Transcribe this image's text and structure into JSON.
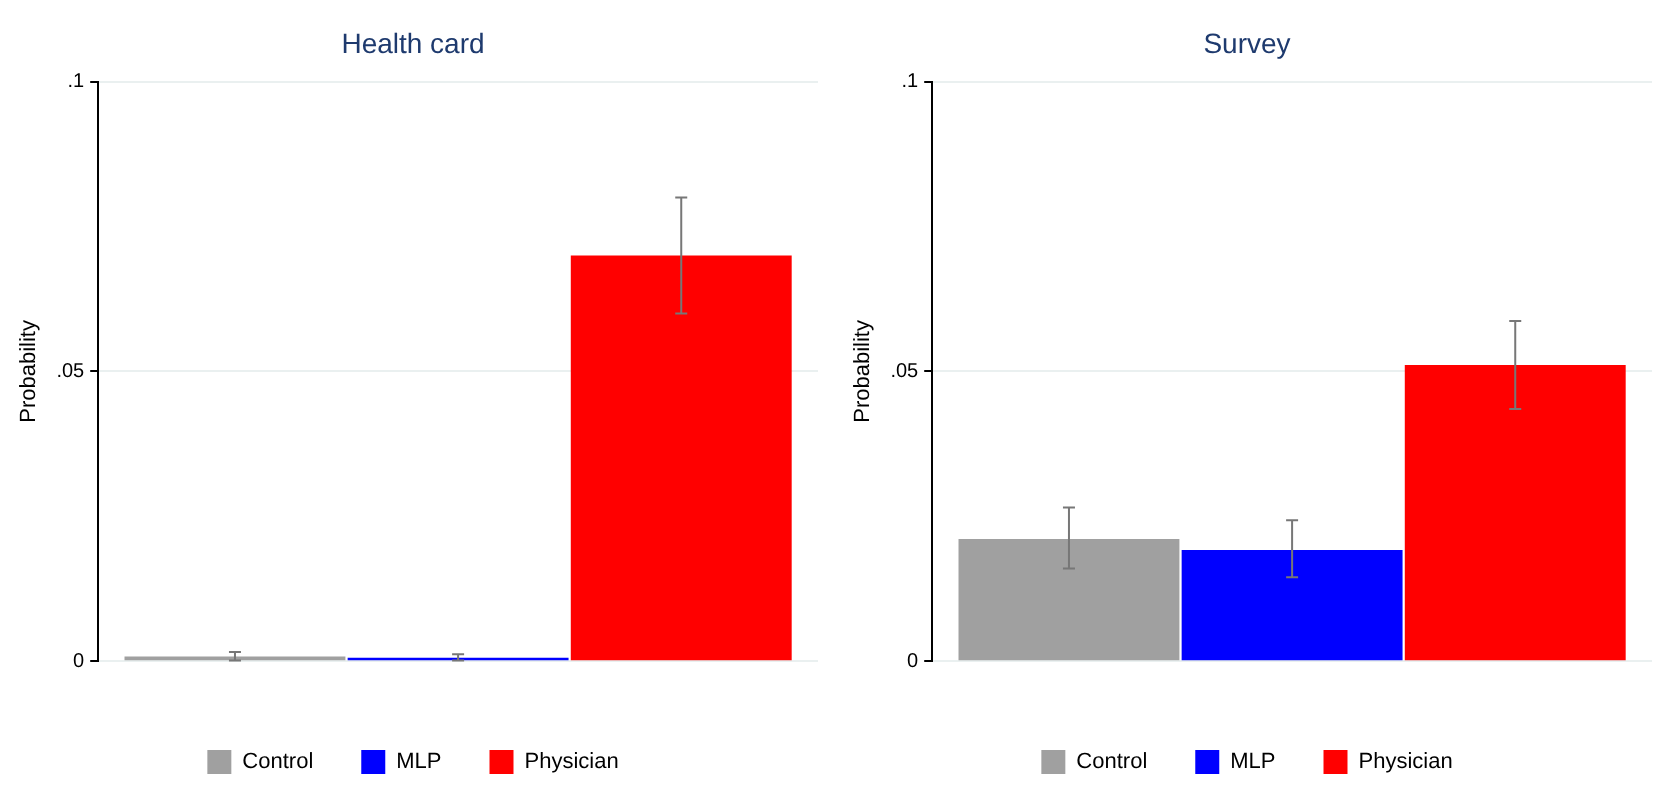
{
  "chart_data": [
    {
      "type": "bar",
      "title": "Health card",
      "ylabel": "Probability",
      "categories": [
        null
      ],
      "ylim": [
        0,
        0.1
      ],
      "yticks": [
        {
          "value": 0,
          "label": "0"
        },
        {
          "value": 0.05,
          "label": ".05"
        },
        {
          "value": 0.1,
          "label": ".1"
        }
      ],
      "grid": "y",
      "legend": "bottom",
      "series": [
        {
          "name": "Control",
          "color": "#a0a0a0",
          "values": [
            0.0008
          ],
          "errors": [
            [
              0.0001,
              0.0016
            ]
          ]
        },
        {
          "name": "MLP",
          "color": "#0000ff",
          "values": [
            0.0006
          ],
          "errors": [
            [
              0.0001,
              0.0012
            ]
          ]
        },
        {
          "name": "Physician",
          "color": "#ff0000",
          "values": [
            0.07
          ],
          "errors": [
            [
              0.06,
              0.08
            ]
          ]
        }
      ]
    },
    {
      "type": "bar",
      "title": "Survey",
      "ylabel": "Probability",
      "categories": [
        null
      ],
      "ylim": [
        0,
        0.1
      ],
      "yticks": [
        {
          "value": 0,
          "label": "0"
        },
        {
          "value": 0.05,
          "label": ".05"
        },
        {
          "value": 0.1,
          "label": ".1"
        }
      ],
      "grid": "y",
      "legend": "bottom",
      "series": [
        {
          "name": "Control",
          "color": "#a0a0a0",
          "values": [
            0.0211
          ],
          "errors": [
            [
              0.016,
              0.0265
            ]
          ]
        },
        {
          "name": "MLP",
          "color": "#0000ff",
          "values": [
            0.0192
          ],
          "errors": [
            [
              0.0145,
              0.0243
            ]
          ]
        },
        {
          "name": "Physician",
          "color": "#ff0000",
          "values": [
            0.0511
          ],
          "errors": [
            [
              0.0435,
              0.0587
            ]
          ]
        }
      ]
    }
  ]
}
